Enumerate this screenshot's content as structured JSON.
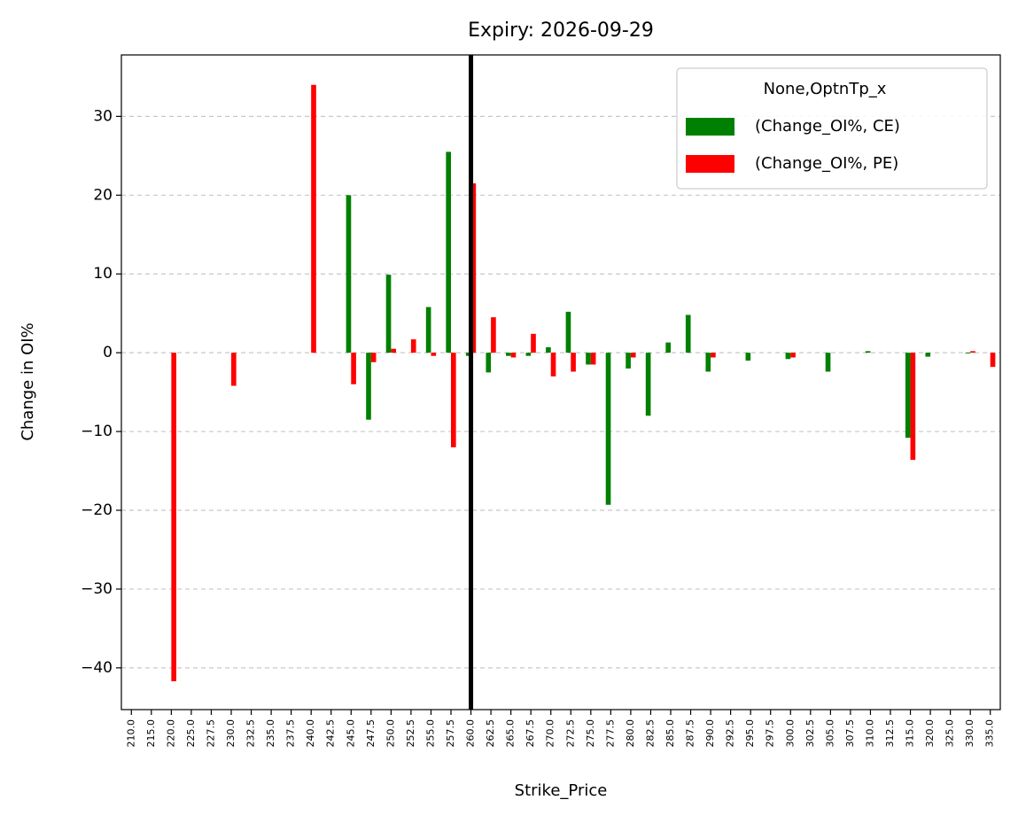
{
  "chart_data": {
    "type": "bar",
    "title": "Expiry: 2026-09-29",
    "x_label": "Strike_Price",
    "y_label": "Change in OI%",
    "categories": [
      "210.0",
      "215.0",
      "220.0",
      "225.0",
      "227.5",
      "230.0",
      "232.5",
      "235.0",
      "237.5",
      "240.0",
      "242.5",
      "245.0",
      "247.5",
      "250.0",
      "252.5",
      "255.0",
      "257.5",
      "260.0",
      "262.5",
      "265.0",
      "267.5",
      "270.0",
      "272.5",
      "275.0",
      "277.5",
      "280.0",
      "282.5",
      "285.0",
      "287.5",
      "290.0",
      "292.5",
      "295.0",
      "297.5",
      "300.0",
      "302.5",
      "305.0",
      "307.5",
      "310.0",
      "312.5",
      "315.0",
      "320.0",
      "325.0",
      "330.0",
      "335.0"
    ],
    "series": [
      {
        "name": "(Change_OI%, CE)",
        "color": "#008000",
        "values": [
          0,
          0,
          0,
          0,
          0,
          0,
          0,
          0,
          0,
          0,
          0,
          20,
          -8.5,
          9.9,
          0,
          5.8,
          25.5,
          -0.4,
          -2.5,
          -0.4,
          -0.4,
          0.7,
          5.2,
          -1.5,
          -19.3,
          -2,
          -8,
          1.3,
          4.8,
          -2.4,
          0,
          -1,
          0,
          -0.8,
          0,
          -2.4,
          0,
          0.2,
          0,
          -10.8,
          -0.5,
          0,
          -0.1,
          0
        ]
      },
      {
        "name": "(Change_OI%, PE)",
        "color": "#ff0000",
        "values": [
          0,
          0,
          -41.7,
          0,
          0,
          -4.2,
          0,
          0,
          0,
          34,
          0,
          -4,
          -1.2,
          0.5,
          1.7,
          -0.4,
          -12,
          21.5,
          4.5,
          -0.6,
          2.4,
          -3,
          -2.4,
          -1.5,
          0,
          -0.6,
          0,
          0,
          0,
          -0.6,
          0,
          0,
          0,
          -0.6,
          0,
          0,
          0,
          0,
          0,
          -13.6,
          0,
          0,
          0.2,
          -1.8
        ]
      }
    ],
    "legend_title": "None,OptnTp_x",
    "legend": "upper right",
    "vline": "260.0",
    "ylim": [
      -45.3,
      37.8
    ],
    "yticks": [
      {
        "value": -40,
        "label": "−40"
      },
      {
        "value": -30,
        "label": "−30"
      },
      {
        "value": -20,
        "label": "−20"
      },
      {
        "value": -10,
        "label": "−10"
      },
      0,
      10,
      20,
      30
    ],
    "grid": true
  }
}
